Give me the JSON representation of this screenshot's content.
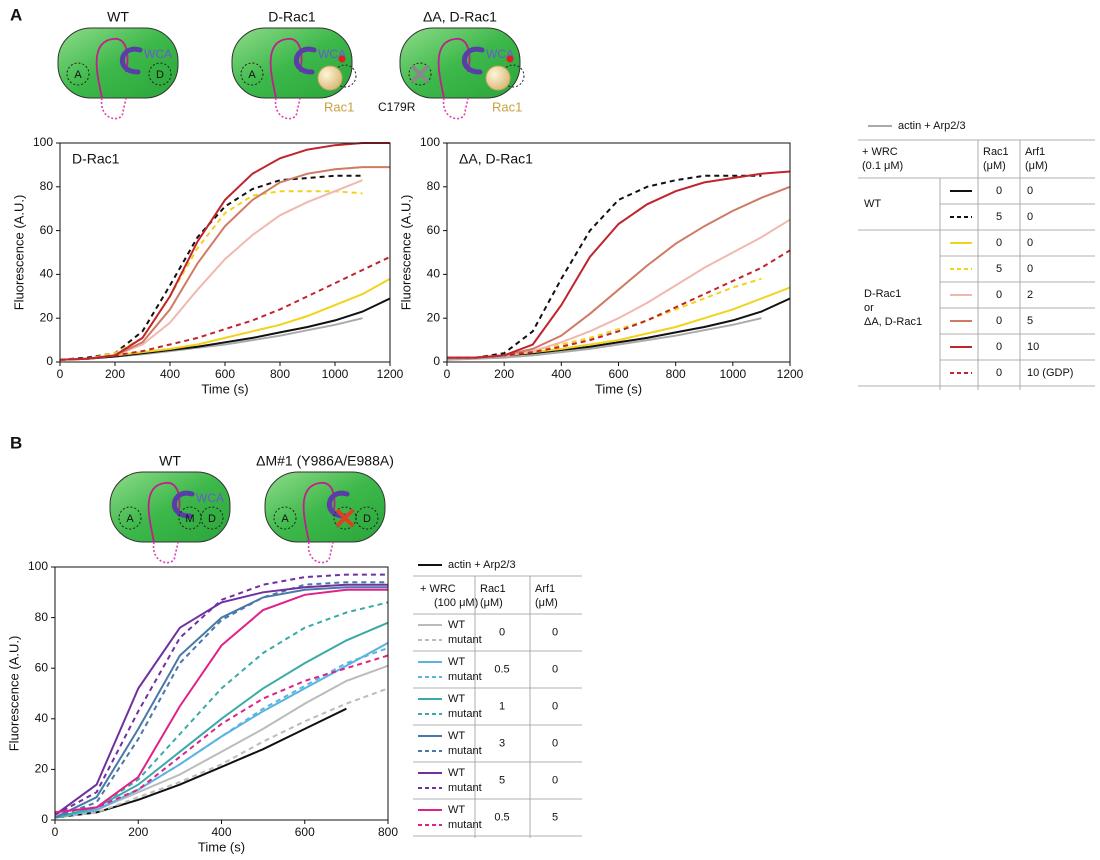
{
  "panel_labels": [
    "A",
    "B"
  ],
  "schematics": [
    {
      "title": "WT",
      "wca": "WCA",
      "a": "A",
      "d": "D"
    },
    {
      "title": "D-Rac1",
      "wca": "WCA",
      "a": "A",
      "rac1": "Rac1"
    },
    {
      "title": "ΔA, D-Rac1",
      "wca": "WCA",
      "a_deleted": true,
      "mutation": "C179R",
      "rac1": "Rac1"
    },
    {
      "title": "WT",
      "wca": "WCA",
      "a": "A",
      "m": "M",
      "d": "D"
    },
    {
      "title": "ΔM#1 (Y986A/E988A)",
      "a": "A",
      "d": "D",
      "m_deleted": true
    }
  ],
  "chart_data": [
    {
      "type": "line",
      "title": "D-Rac1",
      "xlabel": "Time (s)",
      "ylabel": "Fluorescence (A.U.)",
      "x": [
        0,
        100,
        200,
        300,
        400,
        500,
        600,
        700,
        800,
        900,
        1000,
        1100,
        1200
      ],
      "xlim": [
        0,
        1200
      ],
      "ylim": [
        0,
        100
      ],
      "xticks": [
        0,
        200,
        400,
        600,
        800,
        1000,
        1200
      ],
      "yticks": [
        0,
        20,
        40,
        60,
        80,
        100
      ],
      "series": [
        {
          "color": "#aaaaaa",
          "dash": false,
          "values": [
            1,
            1.5,
            2.5,
            3.5,
            5,
            6.5,
            8,
            10,
            12,
            14.5,
            17,
            20,
            null
          ]
        },
        {
          "color": "#111111",
          "dash": false,
          "values": [
            1,
            1.5,
            2.5,
            4,
            5.5,
            7,
            9,
            11,
            13.5,
            16,
            19,
            23,
            29
          ]
        },
        {
          "color": "#111111",
          "dash": true,
          "values": [
            1,
            2,
            4,
            14,
            35,
            57,
            71,
            79,
            83,
            84,
            85,
            85,
            null
          ]
        },
        {
          "color": "#f2d31b",
          "dash": false,
          "values": [
            1,
            1.5,
            3,
            4.5,
            6,
            8,
            11,
            14,
            17,
            21,
            26,
            31,
            38
          ]
        },
        {
          "color": "#f2d31b",
          "dash": true,
          "values": [
            1,
            1.5,
            4,
            11,
            30,
            52,
            68,
            76,
            78,
            78,
            78,
            77,
            null
          ]
        },
        {
          "color": "#f0b9b0",
          "dash": false,
          "values": [
            1,
            1.5,
            3,
            8,
            18,
            33,
            47,
            58,
            67,
            73,
            78,
            83,
            null
          ]
        },
        {
          "color": "#d07a66",
          "dash": false,
          "values": [
            1,
            1.5,
            3,
            9,
            24,
            45,
            62,
            74,
            82,
            86,
            88,
            89,
            89
          ]
        },
        {
          "color": "#c0242c",
          "dash": false,
          "values": [
            1,
            1.5,
            3,
            11,
            30,
            55,
            74,
            86,
            93,
            97,
            99,
            100,
            100
          ]
        },
        {
          "color": "#c0242c",
          "dash": true,
          "values": [
            1,
            1.5,
            3,
            5,
            8,
            11,
            15,
            19,
            24,
            30,
            36,
            42,
            48
          ]
        }
      ]
    },
    {
      "type": "line",
      "title": "ΔA, D-Rac1",
      "xlabel": "Time (s)",
      "ylabel": "Fluorescence (A.U.)",
      "x": [
        0,
        100,
        200,
        300,
        400,
        500,
        600,
        700,
        800,
        900,
        1000,
        1100,
        1200
      ],
      "xlim": [
        0,
        1200
      ],
      "ylim": [
        0,
        100
      ],
      "xticks": [
        0,
        200,
        400,
        600,
        800,
        1000,
        1200
      ],
      "yticks": [
        0,
        20,
        40,
        60,
        80,
        100
      ],
      "series": [
        {
          "color": "#aaaaaa",
          "dash": false,
          "values": [
            1,
            1.5,
            2,
            3,
            4.5,
            6,
            8,
            10,
            12,
            14.5,
            17,
            20,
            null
          ]
        },
        {
          "color": "#111111",
          "dash": false,
          "values": [
            2,
            2,
            3,
            4,
            5.5,
            7,
            9,
            11,
            13.5,
            16,
            19,
            23,
            29
          ]
        },
        {
          "color": "#111111",
          "dash": true,
          "values": [
            2,
            2,
            4,
            14,
            38,
            60,
            74,
            80,
            83,
            85,
            85,
            85,
            null
          ]
        },
        {
          "color": "#f2d31b",
          "dash": false,
          "values": [
            2,
            2,
            3,
            4.5,
            6,
            8,
            10,
            13,
            16,
            20,
            24,
            29,
            34
          ]
        },
        {
          "color": "#f2d31b",
          "dash": true,
          "values": [
            2,
            2,
            3,
            5,
            8,
            11,
            15,
            19,
            24,
            29,
            34,
            38,
            null
          ]
        },
        {
          "color": "#f0b9b0",
          "dash": false,
          "values": [
            2,
            2,
            3,
            5,
            9,
            14,
            20,
            27,
            35,
            43,
            50,
            57,
            65
          ]
        },
        {
          "color": "#d07a66",
          "dash": false,
          "values": [
            2,
            2,
            3,
            6,
            12,
            22,
            33,
            44,
            54,
            62,
            69,
            75,
            80
          ]
        },
        {
          "color": "#c0242c",
          "dash": false,
          "values": [
            2,
            2,
            3,
            8,
            26,
            48,
            63,
            72,
            78,
            82,
            84,
            86,
            87
          ]
        },
        {
          "color": "#c0242c",
          "dash": true,
          "values": [
            2,
            2,
            3,
            4.5,
            7,
            10,
            14,
            19,
            25,
            31,
            37,
            43,
            51
          ]
        }
      ]
    },
    {
      "type": "line",
      "xlabel": "Time (s)",
      "ylabel": "Fluorescence (A.U.)",
      "x": [
        0,
        100,
        200,
        300,
        400,
        500,
        600,
        700,
        800
      ],
      "xlim": [
        0,
        800
      ],
      "ylim": [
        0,
        100
      ],
      "xticks": [
        0,
        200,
        400,
        600,
        800
      ],
      "yticks": [
        0,
        20,
        40,
        60,
        80,
        100
      ],
      "series": [
        {
          "color": "#111111",
          "dash": false,
          "values": [
            1,
            3,
            8,
            14,
            21,
            28,
            36,
            44,
            null
          ]
        },
        {
          "color": "#bbbbbb",
          "dash": false,
          "values": [
            1,
            4,
            11,
            18,
            27,
            36,
            46,
            55,
            61
          ]
        },
        {
          "color": "#bbbbbb",
          "dash": true,
          "values": [
            1,
            3,
            9,
            15,
            22,
            31,
            39,
            46,
            52
          ]
        },
        {
          "color": "#5ab4e0",
          "dash": false,
          "values": [
            1,
            4,
            12,
            22,
            33,
            43,
            52,
            61,
            70
          ]
        },
        {
          "color": "#5ab4e0",
          "dash": true,
          "values": [
            1,
            4,
            12,
            22,
            33,
            44,
            53,
            62,
            68
          ]
        },
        {
          "color": "#3aaaa8",
          "dash": false,
          "values": [
            1,
            5,
            14,
            27,
            40,
            52,
            62,
            71,
            78
          ]
        },
        {
          "color": "#3aaaa8",
          "dash": true,
          "values": [
            1,
            5,
            16,
            34,
            52,
            66,
            76,
            82,
            86
          ]
        },
        {
          "color": "#4a78a8",
          "dash": false,
          "values": [
            1,
            9,
            36,
            65,
            80,
            88,
            91,
            92,
            92
          ]
        },
        {
          "color": "#4a78a8",
          "dash": true,
          "values": [
            1,
            7,
            32,
            62,
            79,
            88,
            93,
            94,
            94
          ]
        },
        {
          "color": "#7030a0",
          "dash": false,
          "values": [
            2,
            14,
            52,
            76,
            86,
            90,
            92,
            93,
            93
          ]
        },
        {
          "color": "#7030a0",
          "dash": true,
          "values": [
            2,
            11,
            43,
            72,
            87,
            93,
            96,
            97,
            97
          ]
        },
        {
          "color": "#e0208a",
          "dash": false,
          "values": [
            3,
            5,
            17,
            45,
            69,
            83,
            89,
            91,
            91
          ]
        },
        {
          "color": "#e0208a",
          "dash": true,
          "values": [
            3,
            5,
            12,
            25,
            38,
            48,
            55,
            60,
            65
          ]
        }
      ]
    }
  ],
  "legend_tables": [
    {
      "top_entry": "actin + Arp2/3",
      "header": [
        [
          "+ WRC",
          "(0.1 μM)"
        ],
        [
          "Rac1",
          "(μM)"
        ],
        [
          "Arf1",
          "(μM)"
        ]
      ],
      "groups": [
        {
          "label": [
            "WT"
          ],
          "rows": [
            {
              "rac1": 0,
              "arf1": 0
            },
            {
              "rac1": 5,
              "arf1": 0
            }
          ]
        },
        {
          "label": [
            "D-Rac1",
            "or",
            "ΔA, D-Rac1"
          ],
          "rows": [
            {
              "rac1": 0,
              "arf1": 0
            },
            {
              "rac1": 5,
              "arf1": 0
            },
            {
              "rac1": 0,
              "arf1": 2
            },
            {
              "rac1": 0,
              "arf1": 5
            },
            {
              "rac1": 0,
              "arf1": 10
            },
            {
              "rac1": 0,
              "arf1": "10 (GDP)"
            }
          ]
        }
      ]
    },
    {
      "top_entry": "actin + Arp2/3",
      "header": [
        [
          "+   WRC",
          "(100 μM)"
        ],
        [
          "Rac1",
          "(μM)"
        ],
        [
          "Arf1",
          "(μM)"
        ]
      ],
      "rows": [
        {
          "lines": [
            "WT",
            "mutant"
          ],
          "rac1": 0,
          "arf1": 0
        },
        {
          "lines": [
            "WT",
            "mutant"
          ],
          "rac1": 0.5,
          "arf1": 0
        },
        {
          "lines": [
            "WT",
            "mutant"
          ],
          "rac1": 1,
          "arf1": 0
        },
        {
          "lines": [
            "WT",
            "mutant"
          ],
          "rac1": 3,
          "arf1": 0
        },
        {
          "lines": [
            "WT",
            "mutant"
          ],
          "rac1": 5,
          "arf1": 0
        },
        {
          "lines": [
            "WT",
            "mutant"
          ],
          "rac1": 0.5,
          "arf1": 5
        }
      ]
    }
  ]
}
